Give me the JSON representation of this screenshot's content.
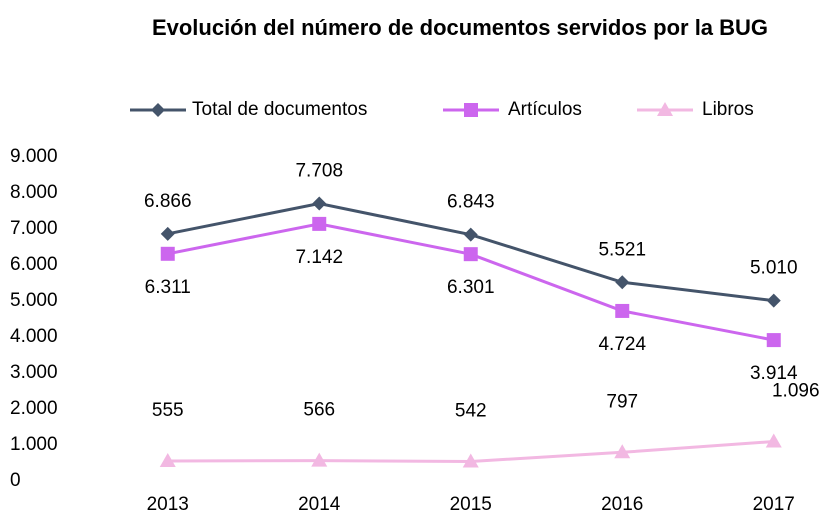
{
  "chart_data": {
    "type": "line",
    "title": "Evolución del número de documentos servidos por la BUG",
    "categories": [
      "2013",
      "2014",
      "2015",
      "2016",
      "2017"
    ],
    "series": [
      {
        "name": "Total de documentos",
        "color": "#44546a",
        "marker": "diamond",
        "values": [
          6866,
          7708,
          6843,
          5521,
          5010
        ],
        "value_labels": [
          "6.866",
          "7.708",
          "6.843",
          "5.521",
          "5.010"
        ]
      },
      {
        "name": "Artículos",
        "color": "#cc66ee",
        "marker": "square",
        "values": [
          6311,
          7142,
          6301,
          4724,
          3914
        ],
        "value_labels": [
          "6.311",
          "7.142",
          "6.301",
          "4.724",
          "3.914"
        ]
      },
      {
        "name": "Libros",
        "color": "#f2b8e2",
        "marker": "triangle",
        "values": [
          555,
          566,
          542,
          797,
          1096
        ],
        "value_labels": [
          "555",
          "566",
          "542",
          "797",
          "1.096"
        ]
      }
    ],
    "ylim": [
      0,
      9000
    ],
    "yticks": [
      0,
      {
        "value": 1000,
        "label": "1.000"
      },
      {
        "value": 2000,
        "label": "2.000"
      },
      {
        "value": 3000,
        "label": "3.000"
      },
      {
        "value": 4000,
        "label": "4.000"
      },
      {
        "value": 5000,
        "label": "5.000"
      },
      {
        "value": 6000,
        "label": "6.000"
      },
      {
        "value": 7000,
        "label": "7.000"
      },
      {
        "value": 8000,
        "label": "8.000"
      },
      {
        "value": 9000,
        "label": "9.000"
      }
    ],
    "grid": false,
    "legend": "top"
  }
}
